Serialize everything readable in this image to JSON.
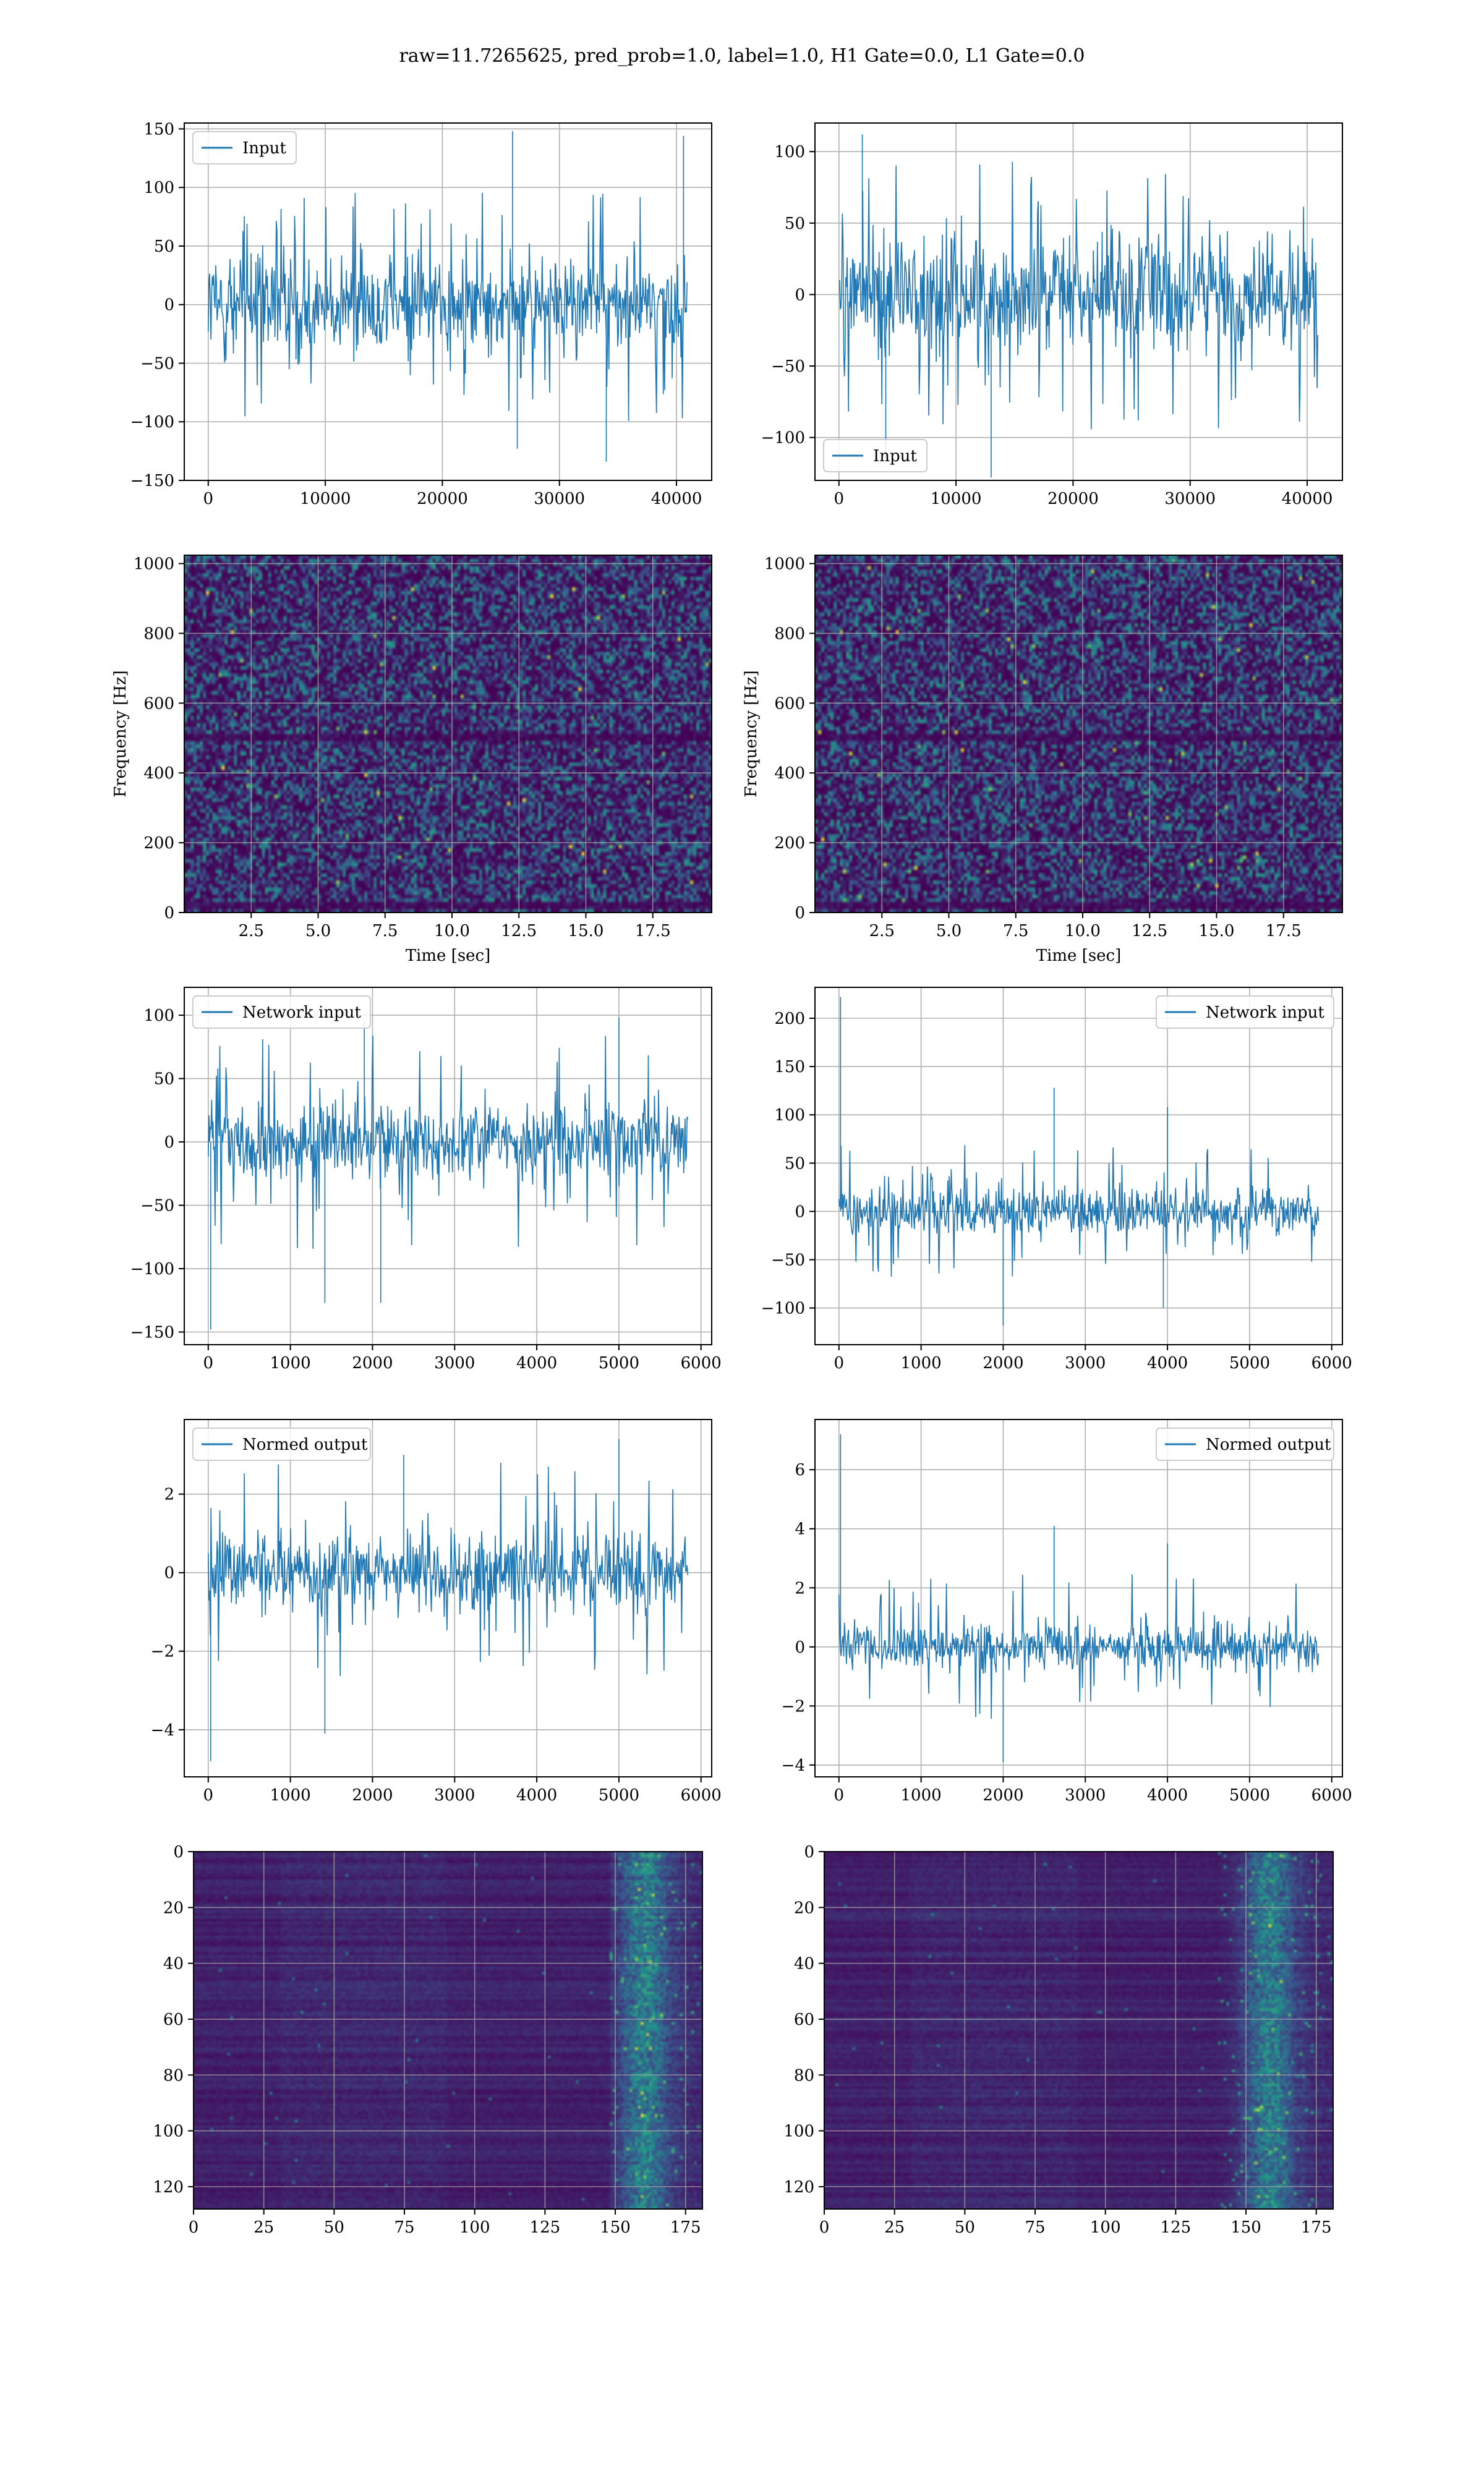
{
  "suptitle": "raw=11.7265625, pred_prob=1.0, label=1.0, H1 Gate=0.0, L1 Gate=0.0",
  "colors": {
    "line": "#1f77b4",
    "grid": "#b0b0b0",
    "heat_low": "#440154",
    "heat_mid": "#21918c",
    "heat_high": "#fde725"
  },
  "chart_data": [
    {
      "id": "p1",
      "type": "line",
      "legend": "Input",
      "legend_loc": "upper-left",
      "xlim": [
        -2048,
        43008
      ],
      "ylim": [
        -150,
        155
      ],
      "xticks": [
        0,
        10000,
        20000,
        30000,
        40000
      ],
      "xtick_labels": [
        "0",
        "10000",
        "20000",
        "30000",
        "40000"
      ],
      "yticks": [
        -150,
        -100,
        -50,
        0,
        50,
        100,
        150
      ],
      "ytick_labels": [
        "−150",
        "−100",
        "−50",
        "0",
        "50",
        "100",
        "150"
      ],
      "xlabel": "",
      "ylabel": "",
      "grid": true,
      "series": [
        {
          "name": "Input",
          "x_start": 0,
          "x_end": 40960,
          "envelope_inner": 55,
          "envelope_outer": 100,
          "spikes": [
            [
              26000,
              148
            ],
            [
              40600,
              144
            ],
            [
              34000,
              -134
            ],
            [
              26400,
              -123
            ]
          ]
        }
      ]
    },
    {
      "id": "p2",
      "type": "line",
      "legend": "Input",
      "legend_loc": "lower-left",
      "xlim": [
        -2048,
        43008
      ],
      "ylim": [
        -130,
        120
      ],
      "xticks": [
        0,
        10000,
        20000,
        30000,
        40000
      ],
      "xtick_labels": [
        "0",
        "10000",
        "20000",
        "30000",
        "40000"
      ],
      "yticks": [
        -100,
        -50,
        0,
        50,
        100
      ],
      "ytick_labels": [
        "−100",
        "−50",
        "0",
        "50",
        "100"
      ],
      "xlabel": "",
      "ylabel": "",
      "grid": true,
      "series": [
        {
          "name": "Input",
          "x_start": 0,
          "x_end": 40960,
          "envelope_inner": 55,
          "envelope_outer": 95,
          "spikes": [
            [
              4000,
              -115
            ],
            [
              13000,
              -128
            ],
            [
              2000,
              112
            ]
          ]
        }
      ]
    },
    {
      "id": "p3",
      "type": "heatmap",
      "xlim": [
        0,
        19.7
      ],
      "ylim": [
        0,
        1024
      ],
      "xticks": [
        2.5,
        5,
        7.5,
        10,
        12.5,
        15,
        17.5
      ],
      "xtick_labels": [
        "2.5",
        "5.0",
        "7.5",
        "10.0",
        "12.5",
        "15.0",
        "17.5"
      ],
      "yticks": [
        0,
        200,
        400,
        600,
        800,
        1000
      ],
      "ytick_labels": [
        "0",
        "200",
        "400",
        "600",
        "800",
        "1000"
      ],
      "xlabel": "Time [sec]",
      "ylabel": "Frequency [Hz]",
      "grid": true,
      "dark_bands": [
        500,
        20
      ]
    },
    {
      "id": "p4",
      "type": "heatmap",
      "xlim": [
        0,
        19.7
      ],
      "ylim": [
        0,
        1024
      ],
      "xticks": [
        2.5,
        5,
        7.5,
        10,
        12.5,
        15,
        17.5
      ],
      "xtick_labels": [
        "2.5",
        "5.0",
        "7.5",
        "10.0",
        "12.5",
        "15.0",
        "17.5"
      ],
      "yticks": [
        0,
        200,
        400,
        600,
        800,
        1000
      ],
      "ytick_labels": [
        "0",
        "200",
        "400",
        "600",
        "800",
        "1000"
      ],
      "xlabel": "Time [sec]",
      "ylabel": "Frequency [Hz]",
      "grid": true,
      "dark_bands": [
        500,
        20
      ]
    },
    {
      "id": "p5",
      "type": "line",
      "legend": "Network input",
      "legend_loc": "upper-left",
      "xlim": [
        -292,
        6130
      ],
      "ylim": [
        -160,
        122
      ],
      "xticks": [
        0,
        1000,
        2000,
        3000,
        4000,
        5000,
        6000
      ],
      "xtick_labels": [
        "0",
        "1000",
        "2000",
        "3000",
        "4000",
        "5000",
        "6000"
      ],
      "yticks": [
        -150,
        -100,
        -50,
        0,
        50,
        100
      ],
      "ytick_labels": [
        "−150",
        "−100",
        "−50",
        "0",
        "50",
        "100"
      ],
      "xlabel": "",
      "ylabel": "",
      "grid": true,
      "series": [
        {
          "name": "Network input",
          "x_start": 0,
          "x_end": 5840,
          "envelope_inner": 40,
          "envelope_outer": 85,
          "spikes": [
            [
              30,
              -148
            ],
            [
              1420,
              -127
            ],
            [
              2100,
              -127
            ],
            [
              5000,
              98
            ],
            [
              1900,
              95
            ]
          ]
        }
      ]
    },
    {
      "id": "p6",
      "type": "line",
      "legend": "Network input",
      "legend_loc": "upper-right",
      "xlim": [
        -292,
        6130
      ],
      "ylim": [
        -138,
        232
      ],
      "xticks": [
        0,
        1000,
        2000,
        3000,
        4000,
        5000,
        6000
      ],
      "xtick_labels": [
        "0",
        "1000",
        "2000",
        "3000",
        "4000",
        "5000",
        "6000"
      ],
      "yticks": [
        -100,
        -50,
        0,
        50,
        100,
        150,
        200
      ],
      "ytick_labels": [
        "−100",
        "−50",
        "0",
        "50",
        "100",
        "150",
        "200"
      ],
      "xlabel": "",
      "ylabel": "",
      "grid": true,
      "series": [
        {
          "name": "Network input",
          "x_start": 0,
          "x_end": 5840,
          "envelope_inner": 30,
          "envelope_outer": 70,
          "spikes": [
            [
              20,
              222
            ],
            [
              2620,
              128
            ],
            [
              4000,
              108
            ],
            [
              2000,
              -118
            ],
            [
              3950,
              -100
            ]
          ]
        }
      ]
    },
    {
      "id": "p7",
      "type": "line",
      "legend": "Normed output",
      "legend_loc": "upper-left",
      "xlim": [
        -292,
        6130
      ],
      "ylim": [
        -5.2,
        3.9
      ],
      "xticks": [
        0,
        1000,
        2000,
        3000,
        4000,
        5000,
        6000
      ],
      "xtick_labels": [
        "0",
        "1000",
        "2000",
        "3000",
        "4000",
        "5000",
        "6000"
      ],
      "yticks": [
        -4,
        -2,
        0,
        2
      ],
      "ytick_labels": [
        "−4",
        "−2",
        "0",
        "2"
      ],
      "xlabel": "",
      "ylabel": "",
      "grid": true,
      "series": [
        {
          "name": "Normed output",
          "x_start": 0,
          "x_end": 5840,
          "envelope_inner": 1.3,
          "envelope_outer": 2.8,
          "spikes": [
            [
              30,
              -4.8
            ],
            [
              1420,
              -4.1
            ],
            [
              5000,
              3.4
            ],
            [
              2380,
              3.0
            ]
          ]
        }
      ]
    },
    {
      "id": "p8",
      "type": "line",
      "legend": "Normed output",
      "legend_loc": "upper-right",
      "xlim": [
        -292,
        6130
      ],
      "ylim": [
        -4.4,
        7.7
      ],
      "xticks": [
        0,
        1000,
        2000,
        3000,
        4000,
        5000,
        6000
      ],
      "xtick_labels": [
        "0",
        "1000",
        "2000",
        "3000",
        "4000",
        "5000",
        "6000"
      ],
      "yticks": [
        -4,
        -2,
        0,
        2,
        4,
        6
      ],
      "ytick_labels": [
        "−4",
        "−2",
        "0",
        "2",
        "4",
        "6"
      ],
      "xlabel": "",
      "ylabel": "",
      "grid": true,
      "series": [
        {
          "name": "Normed output",
          "x_start": 0,
          "x_end": 5840,
          "envelope_inner": 1.0,
          "envelope_outer": 2.5,
          "spikes": [
            [
              20,
              7.2
            ],
            [
              2620,
              4.1
            ],
            [
              2000,
              -3.9
            ],
            [
              4000,
              3.5
            ]
          ]
        }
      ]
    },
    {
      "id": "p9",
      "type": "heatmap",
      "xlim": [
        0,
        181
      ],
      "ylim": [
        128,
        0
      ],
      "xticks": [
        0,
        25,
        50,
        75,
        100,
        125,
        150,
        175
      ],
      "xtick_labels": [
        "0",
        "25",
        "50",
        "75",
        "100",
        "125",
        "150",
        "175"
      ],
      "yticks": [
        0,
        20,
        40,
        60,
        80,
        100,
        120
      ],
      "ytick_labels": [
        "0",
        "20",
        "40",
        "60",
        "80",
        "100",
        "120"
      ],
      "xlabel": "",
      "ylabel": "",
      "grid": true,
      "activity_start": 148,
      "activity_peak": 160
    },
    {
      "id": "p10",
      "type": "heatmap",
      "xlim": [
        0,
        181
      ],
      "ylim": [
        128,
        0
      ],
      "xticks": [
        0,
        25,
        50,
        75,
        100,
        125,
        150,
        175
      ],
      "xtick_labels": [
        "0",
        "25",
        "50",
        "75",
        "100",
        "125",
        "150",
        "175"
      ],
      "yticks": [
        0,
        20,
        40,
        60,
        80,
        100,
        120
      ],
      "ytick_labels": [
        "0",
        "20",
        "40",
        "60",
        "80",
        "100",
        "120"
      ],
      "xlabel": "",
      "ylabel": "",
      "grid": true,
      "activity_start": 140,
      "activity_peak": 158
    }
  ]
}
